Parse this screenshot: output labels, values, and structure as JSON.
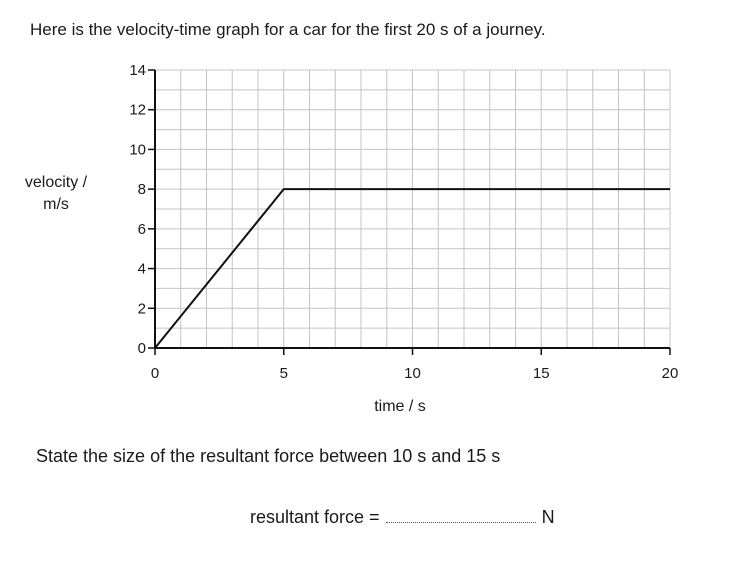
{
  "intro": "Here is the velocity-time graph for a car for the first 20 s of a journey.",
  "question": "State the size of the resultant force between 10 s and 15 s",
  "answer": {
    "label": "resultant force =",
    "unit": "N"
  },
  "chart_data": {
    "type": "line",
    "xlabel": "time / s",
    "ylabel": "velocity / m/s",
    "xlim": [
      0,
      20
    ],
    "ylim": [
      0,
      14
    ],
    "x_ticks": [
      0,
      5,
      10,
      15,
      20
    ],
    "y_ticks": [
      0,
      2,
      4,
      6,
      8,
      10,
      12,
      14
    ],
    "grid": true,
    "series": [
      {
        "x": [
          0,
          5,
          20
        ],
        "y": [
          0,
          8,
          8
        ]
      }
    ]
  }
}
